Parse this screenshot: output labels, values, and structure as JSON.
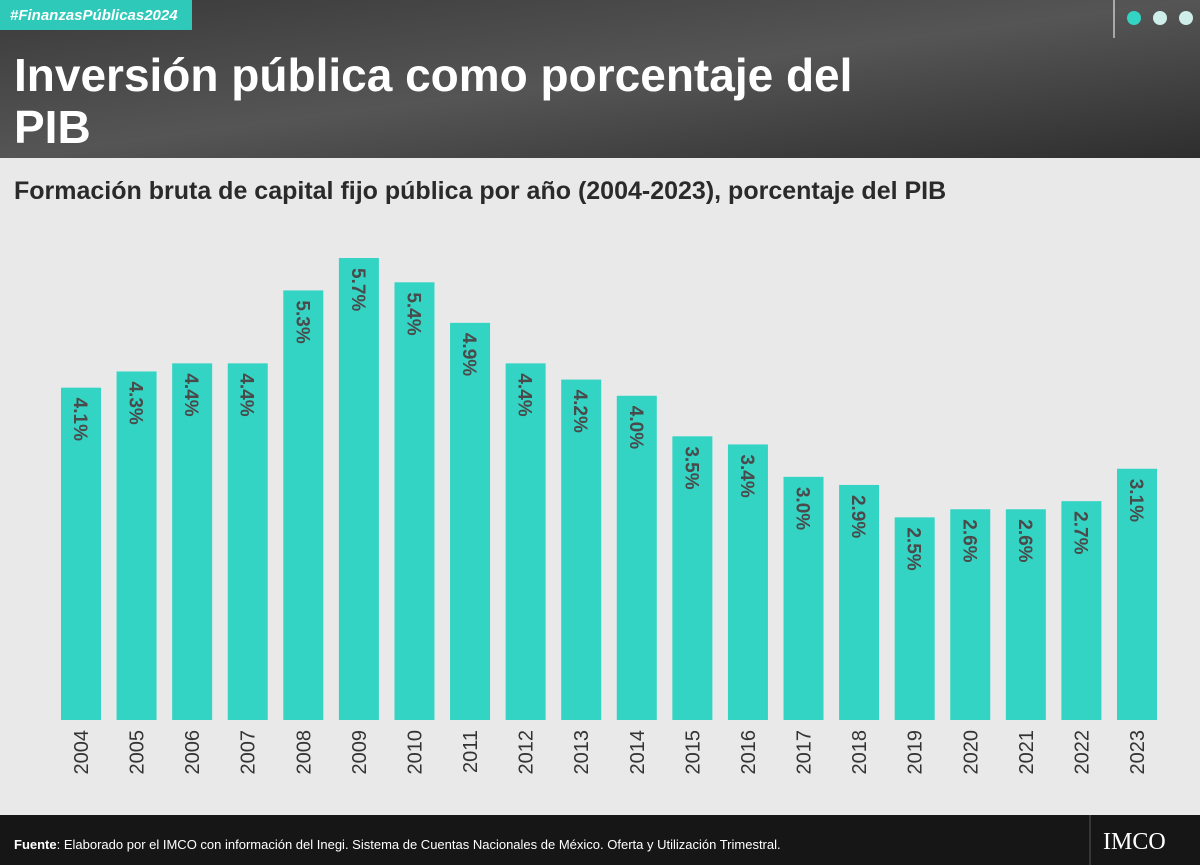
{
  "header": {
    "tag": "#FinanzasPúblicas2024",
    "title_lines": [
      "Inversión pública como porcentaje del",
      "PIB"
    ]
  },
  "chart_data": {
    "type": "bar",
    "title": "Formación bruta de capital fijo pública por año (2004-2023), porcentaje del PIB",
    "categories": [
      "2004",
      "2005",
      "2006",
      "2007",
      "2008",
      "2009",
      "2010",
      "2011",
      "2012",
      "2013",
      "2014",
      "2015",
      "2016",
      "2017",
      "2018",
      "2019",
      "2020",
      "2021",
      "2022",
      "2023"
    ],
    "values": [
      4.1,
      4.3,
      4.4,
      4.4,
      5.3,
      5.7,
      5.4,
      4.9,
      4.4,
      4.2,
      4.0,
      3.5,
      3.4,
      3.0,
      2.9,
      2.5,
      2.6,
      2.6,
      2.7,
      3.1
    ],
    "value_labels": [
      "4.1%",
      "4.3%",
      "4.4%",
      "4.4%",
      "5.3%",
      "5.7%",
      "5.4%",
      "4.9%",
      "4.4%",
      "4.2%",
      "4.0%",
      "3.5%",
      "3.4%",
      "3.0%",
      "2.9%",
      "2.5%",
      "2.6%",
      "2.6%",
      "2.7%",
      "3.1%"
    ],
    "color": "#33d4c4"
  },
  "footer": {
    "source_label": "Fuente",
    "source_text": ": Elaborado por el IMCO con información del Inegi. Sistema de Cuentas Nacionales de México. Oferta y Utilización Trimestral.",
    "logo": "IMCO"
  }
}
